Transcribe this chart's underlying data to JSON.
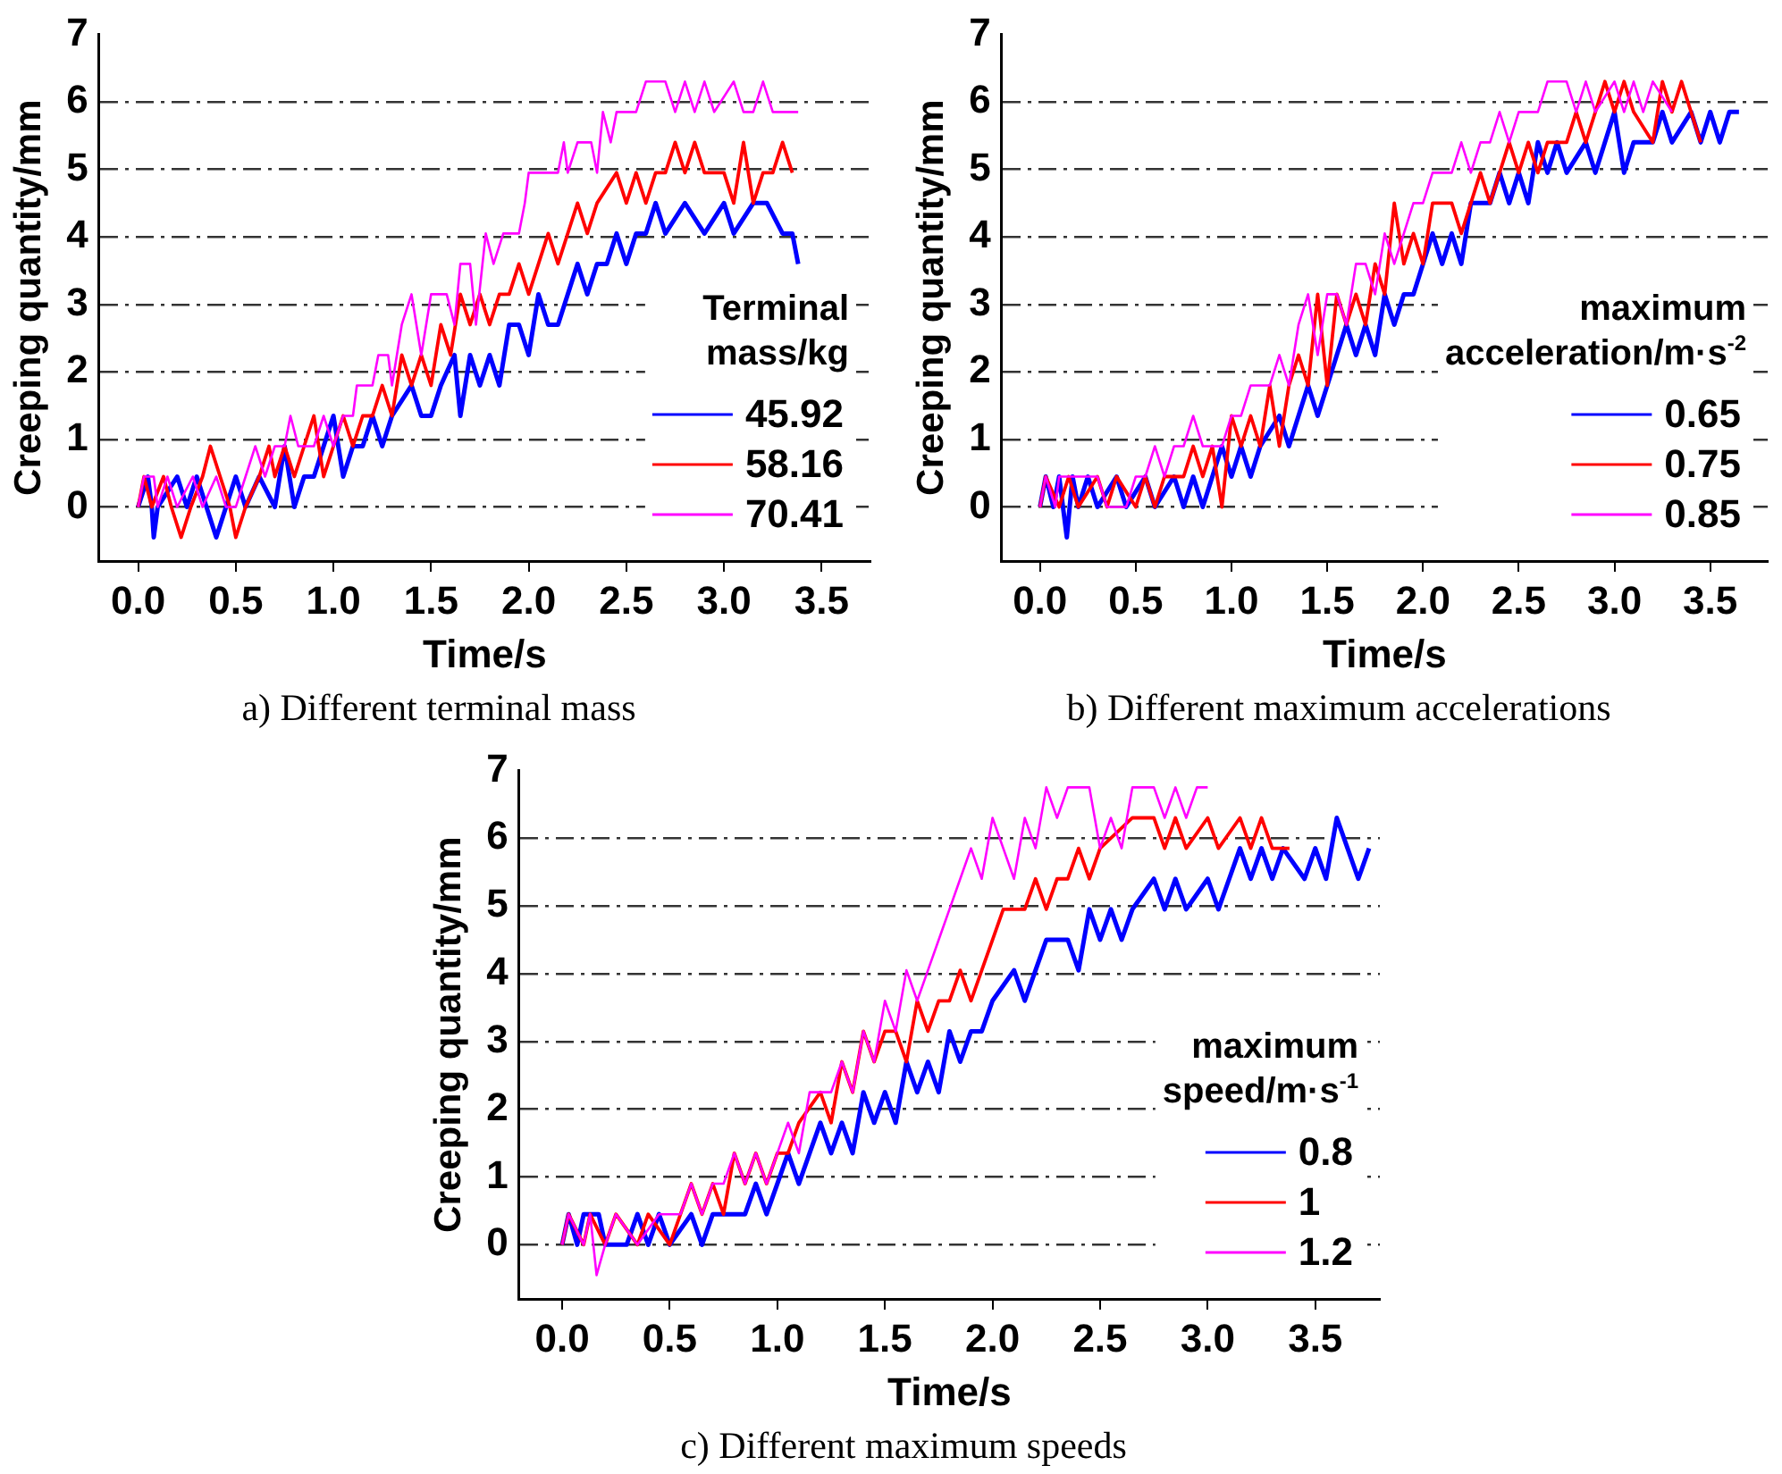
{
  "chart_data": [
    {
      "type": "line",
      "title": "a) Different terminal mass",
      "xlabel": "Time/s",
      "ylabel": "Creeping quantity/mm",
      "legend_title": "Terminal mass/kg",
      "legend": "bottom right",
      "grid": "y",
      "xlim": [
        -0.2,
        3.75
      ],
      "xticks": [
        {
          "value": 0,
          "label": "0.0"
        },
        {
          "value": 0.5,
          "label": "0.5"
        },
        {
          "value": 1,
          "label": "1.0"
        },
        {
          "value": 1.5,
          "label": "1.5"
        },
        {
          "value": 2,
          "label": "2.0"
        },
        {
          "value": 2.5,
          "label": "2.5"
        },
        {
          "value": 3,
          "label": "3.0"
        },
        {
          "value": 3.5,
          "label": "3.5"
        }
      ],
      "ylim": [
        -0.8,
        7
      ],
      "yticks": [
        0,
        1,
        2,
        3,
        4,
        5,
        6,
        7
      ],
      "series": [
        {
          "name": "45.92",
          "color": "#0000ff",
          "x": [
            0,
            0.05,
            0.07,
            0.08,
            0.1,
            0.2,
            0.25,
            0.3,
            0.35,
            0.4,
            0.45,
            0.5,
            0.55,
            0.62,
            0.7,
            0.75,
            0.8,
            0.85,
            0.9,
            0.95,
            1.0,
            1.05,
            1.1,
            1.15,
            1.2,
            1.25,
            1.3,
            1.4,
            1.45,
            1.5,
            1.55,
            1.62,
            1.65,
            1.7,
            1.75,
            1.8,
            1.85,
            1.9,
            1.95,
            2.0,
            2.05,
            2.1,
            2.15,
            2.2,
            2.25,
            2.3,
            2.35,
            2.4,
            2.45,
            2.5,
            2.55,
            2.6,
            2.65,
            2.7,
            2.8,
            2.9,
            3.0,
            3.05,
            3.15,
            3.22,
            3.3,
            3.35,
            3.38
          ],
          "values": [
            0,
            0.45,
            0,
            -0.45,
            0,
            0.45,
            0,
            0.45,
            0,
            -0.45,
            0,
            0.45,
            0,
            0.45,
            0,
            0.9,
            0,
            0.45,
            0.45,
            0.9,
            1.35,
            0.45,
            0.9,
            0.9,
            1.35,
            0.9,
            1.35,
            1.8,
            1.35,
            1.35,
            1.8,
            2.25,
            1.35,
            2.25,
            1.8,
            2.25,
            1.8,
            2.7,
            2.7,
            2.25,
            3.15,
            2.7,
            2.7,
            3.15,
            3.6,
            3.15,
            3.6,
            3.6,
            4.05,
            3.6,
            4.05,
            4.05,
            4.5,
            4.05,
            4.5,
            4.05,
            4.5,
            4.05,
            4.5,
            4.5,
            4.05,
            4.05,
            3.6
          ]
        },
        {
          "name": "58.16",
          "color": "#ff0000",
          "x": [
            0,
            0.03,
            0.07,
            0.13,
            0.17,
            0.22,
            0.27,
            0.33,
            0.37,
            0.42,
            0.47,
            0.5,
            0.55,
            0.62,
            0.67,
            0.7,
            0.75,
            0.8,
            0.85,
            0.9,
            0.95,
            1.0,
            1.05,
            1.1,
            1.15,
            1.2,
            1.25,
            1.3,
            1.35,
            1.4,
            1.45,
            1.5,
            1.55,
            1.6,
            1.65,
            1.7,
            1.75,
            1.8,
            1.85,
            1.9,
            1.95,
            2.0,
            2.05,
            2.1,
            2.15,
            2.2,
            2.25,
            2.3,
            2.35,
            2.45,
            2.5,
            2.55,
            2.6,
            2.65,
            2.7,
            2.75,
            2.8,
            2.85,
            2.9,
            3.0,
            3.05,
            3.1,
            3.15,
            3.2,
            3.25,
            3.3,
            3.35
          ],
          "values": [
            0,
            0.45,
            0,
            0.45,
            0,
            -0.45,
            0,
            0.45,
            0.9,
            0.45,
            0,
            -0.45,
            0,
            0.45,
            0.9,
            0.45,
            0.9,
            0.45,
            0.9,
            1.35,
            0.45,
            0.9,
            1.35,
            0.9,
            1.35,
            1.35,
            1.8,
            1.35,
            2.25,
            1.8,
            2.25,
            1.8,
            2.7,
            2.25,
            3.15,
            2.7,
            3.15,
            2.7,
            3.15,
            3.15,
            3.6,
            3.15,
            3.6,
            4.05,
            3.6,
            4.05,
            4.5,
            4.05,
            4.5,
            4.95,
            4.5,
            4.95,
            4.5,
            4.95,
            4.95,
            5.4,
            4.95,
            5.4,
            4.95,
            4.95,
            4.5,
            5.4,
            4.5,
            4.95,
            4.95,
            5.4,
            4.95
          ]
        },
        {
          "name": "70.41",
          "color": "#ff00ff",
          "x": [
            0,
            0.03,
            0.08,
            0.1,
            0.15,
            0.2,
            0.28,
            0.33,
            0.4,
            0.45,
            0.5,
            0.55,
            0.6,
            0.65,
            0.7,
            0.75,
            0.78,
            0.82,
            0.9,
            0.95,
            1.0,
            1.05,
            1.1,
            1.12,
            1.2,
            1.23,
            1.28,
            1.3,
            1.35,
            1.4,
            1.45,
            1.5,
            1.58,
            1.62,
            1.65,
            1.7,
            1.73,
            1.78,
            1.82,
            1.87,
            1.95,
            1.98,
            2.0,
            2.15,
            2.18,
            2.2,
            2.25,
            2.32,
            2.35,
            2.38,
            2.42,
            2.45,
            2.55,
            2.6,
            2.7,
            2.75,
            2.8,
            2.85,
            2.9,
            2.95,
            3.05,
            3.1,
            3.15,
            3.2,
            3.25,
            3.38
          ],
          "values": [
            0,
            0.45,
            0.45,
            0,
            0.45,
            0,
            0.45,
            0,
            0.45,
            0,
            0,
            0.45,
            0.9,
            0.45,
            0.9,
            0.9,
            1.35,
            0.9,
            0.9,
            1.35,
            0.9,
            1.35,
            1.35,
            1.8,
            1.8,
            2.25,
            2.25,
            1.8,
            2.7,
            3.15,
            2.25,
            3.15,
            3.15,
            2.7,
            3.6,
            3.6,
            2.7,
            4.05,
            3.6,
            4.05,
            4.05,
            4.5,
            4.95,
            4.95,
            5.4,
            4.95,
            5.4,
            5.4,
            4.95,
            5.85,
            5.4,
            5.85,
            5.85,
            6.3,
            6.3,
            5.85,
            6.3,
            5.85,
            6.3,
            5.85,
            6.3,
            5.85,
            5.85,
            6.3,
            5.85,
            5.85
          ]
        }
      ]
    },
    {
      "type": "line",
      "title": "b) Different maximum accelerations",
      "xlabel": "Time/s",
      "ylabel": "Creeping quantity/mm",
      "legend_title": "maximum acceleration/m·s$^{-2}$",
      "legend": "bottom right",
      "grid": "y",
      "xlim": [
        -0.2,
        3.8
      ],
      "xticks": [
        {
          "value": 0,
          "label": "0.0"
        },
        {
          "value": 0.5,
          "label": "0.5"
        },
        {
          "value": 1,
          "label": "1.0"
        },
        {
          "value": 1.5,
          "label": "1.5"
        },
        {
          "value": 2,
          "label": "2.0"
        },
        {
          "value": 2.5,
          "label": "2.5"
        },
        {
          "value": 3,
          "label": "3.0"
        },
        {
          "value": 3.5,
          "label": "3.5"
        }
      ],
      "ylim": [
        -0.8,
        7
      ],
      "yticks": [
        0,
        1,
        2,
        3,
        4,
        5,
        6,
        7
      ],
      "series": [
        {
          "name": "0.65",
          "color": "#0000ff",
          "x": [
            0,
            0.03,
            0.07,
            0.1,
            0.14,
            0.17,
            0.2,
            0.25,
            0.3,
            0.4,
            0.45,
            0.55,
            0.6,
            0.7,
            0.75,
            0.8,
            0.85,
            0.9,
            0.95,
            1.0,
            1.05,
            1.1,
            1.15,
            1.25,
            1.3,
            1.35,
            1.4,
            1.45,
            1.5,
            1.55,
            1.6,
            1.65,
            1.7,
            1.75,
            1.8,
            1.85,
            1.9,
            1.95,
            2.0,
            2.05,
            2.1,
            2.15,
            2.2,
            2.25,
            2.35,
            2.4,
            2.45,
            2.5,
            2.55,
            2.6,
            2.65,
            2.7,
            2.75,
            2.85,
            2.9,
            2.95,
            3.0,
            3.05,
            3.1,
            3.2,
            3.25,
            3.3,
            3.4,
            3.45,
            3.5,
            3.55,
            3.6,
            3.65
          ],
          "values": [
            0,
            0.45,
            0,
            0.45,
            -0.45,
            0.45,
            0,
            0.45,
            0,
            0.45,
            0,
            0.45,
            0,
            0.45,
            0,
            0.45,
            0,
            0.45,
            0.9,
            0.45,
            0.9,
            0.45,
            0.9,
            1.35,
            0.9,
            1.35,
            1.8,
            1.35,
            1.8,
            2.25,
            2.7,
            2.25,
            2.7,
            2.25,
            3.15,
            2.7,
            3.15,
            3.15,
            3.6,
            4.05,
            3.6,
            4.05,
            3.6,
            4.5,
            4.5,
            4.95,
            4.5,
            4.95,
            4.5,
            5.4,
            4.95,
            5.4,
            4.95,
            5.4,
            4.95,
            5.4,
            5.85,
            4.95,
            5.4,
            5.4,
            5.85,
            5.4,
            5.85,
            5.4,
            5.85,
            5.4,
            5.85,
            5.85
          ]
        },
        {
          "name": "0.75",
          "color": "#ff0000",
          "x": [
            0,
            0.03,
            0.1,
            0.15,
            0.2,
            0.3,
            0.35,
            0.4,
            0.5,
            0.55,
            0.6,
            0.65,
            0.75,
            0.8,
            0.85,
            0.9,
            0.95,
            1.0,
            1.05,
            1.1,
            1.15,
            1.2,
            1.25,
            1.3,
            1.35,
            1.4,
            1.45,
            1.5,
            1.55,
            1.6,
            1.65,
            1.7,
            1.75,
            1.8,
            1.85,
            1.9,
            1.95,
            2.0,
            2.05,
            2.15,
            2.2,
            2.25,
            2.3,
            2.35,
            2.45,
            2.5,
            2.55,
            2.6,
            2.65,
            2.75,
            2.8,
            2.85,
            2.9,
            2.95,
            3.0,
            3.05,
            3.1,
            3.2,
            3.25,
            3.3,
            3.35,
            3.4,
            3.45
          ],
          "values": [
            0,
            0.45,
            0,
            0.45,
            0,
            0.45,
            0,
            0.45,
            0,
            0.45,
            0,
            0.45,
            0.45,
            0.9,
            0.45,
            0.9,
            0,
            1.35,
            0.9,
            1.35,
            0.9,
            1.8,
            0.9,
            1.8,
            2.25,
            1.8,
            3.15,
            1.8,
            3.15,
            2.7,
            3.15,
            2.7,
            3.6,
            3.15,
            4.5,
            3.6,
            4.05,
            3.6,
            4.5,
            4.5,
            4.05,
            4.5,
            4.95,
            4.5,
            5.4,
            4.95,
            5.4,
            4.95,
            5.4,
            5.4,
            5.85,
            5.4,
            5.85,
            6.3,
            5.85,
            6.3,
            5.85,
            5.4,
            6.3,
            5.85,
            6.3,
            5.85,
            5.4
          ]
        },
        {
          "name": "0.85",
          "color": "#ff00ff",
          "x": [
            0,
            0.03,
            0.08,
            0.1,
            0.3,
            0.35,
            0.45,
            0.5,
            0.55,
            0.6,
            0.65,
            0.7,
            0.75,
            0.8,
            0.85,
            0.95,
            1.0,
            1.05,
            1.1,
            1.2,
            1.25,
            1.3,
            1.35,
            1.4,
            1.45,
            1.5,
            1.55,
            1.6,
            1.65,
            1.7,
            1.75,
            1.8,
            1.85,
            1.9,
            1.95,
            2.0,
            2.05,
            2.15,
            2.2,
            2.25,
            2.3,
            2.35,
            2.4,
            2.45,
            2.5,
            2.6,
            2.65,
            2.75,
            2.8,
            2.85,
            2.9,
            3.0,
            3.05,
            3.1,
            3.15,
            3.2,
            3.3
          ],
          "values": [
            0,
            0.45,
            0,
            0.45,
            0.45,
            0,
            0,
            0.45,
            0.45,
            0.9,
            0.45,
            0.9,
            0.9,
            1.35,
            0.9,
            0.9,
            1.35,
            1.35,
            1.8,
            1.8,
            2.25,
            1.8,
            2.7,
            3.15,
            2.25,
            3.15,
            3.15,
            2.7,
            3.6,
            3.6,
            3.15,
            4.05,
            3.6,
            4.05,
            4.5,
            4.5,
            4.95,
            4.95,
            5.4,
            4.95,
            5.4,
            5.4,
            5.85,
            5.4,
            5.85,
            5.85,
            6.3,
            6.3,
            5.85,
            6.3,
            5.85,
            6.3,
            5.85,
            6.3,
            5.85,
            6.3,
            5.85
          ]
        }
      ]
    },
    {
      "type": "line",
      "title": "c) Different maximum speeds",
      "xlabel": "Time/s",
      "ylabel": "Creeping quantity/mm",
      "legend_title": "maximum speed/m·s$^{-1}$",
      "legend": "bottom right",
      "grid": "y",
      "xlim": [
        -0.2,
        3.8
      ],
      "xticks": [
        {
          "value": 0,
          "label": "0.0"
        },
        {
          "value": 0.5,
          "label": "0.5"
        },
        {
          "value": 1,
          "label": "1.0"
        },
        {
          "value": 1.5,
          "label": "1.5"
        },
        {
          "value": 2,
          "label": "2.0"
        },
        {
          "value": 2.5,
          "label": "2.5"
        },
        {
          "value": 3,
          "label": "3.0"
        },
        {
          "value": 3.5,
          "label": "3.5"
        }
      ],
      "ylim": [
        -0.8,
        7
      ],
      "yticks": [
        0,
        1,
        2,
        3,
        4,
        5,
        6,
        7
      ],
      "series": [
        {
          "name": "0.8",
          "color": "#0000ff",
          "x": [
            0,
            0.03,
            0.07,
            0.1,
            0.17,
            0.2,
            0.3,
            0.35,
            0.4,
            0.45,
            0.5,
            0.6,
            0.65,
            0.7,
            0.85,
            0.9,
            0.95,
            1.0,
            1.05,
            1.1,
            1.15,
            1.2,
            1.25,
            1.3,
            1.35,
            1.4,
            1.45,
            1.5,
            1.55,
            1.6,
            1.65,
            1.7,
            1.75,
            1.8,
            1.85,
            1.9,
            1.95,
            2.0,
            2.1,
            2.15,
            2.2,
            2.25,
            2.35,
            2.4,
            2.45,
            2.5,
            2.55,
            2.6,
            2.65,
            2.75,
            2.8,
            2.85,
            2.9,
            3.0,
            3.05,
            3.1,
            3.15,
            3.2,
            3.25,
            3.3,
            3.35,
            3.45,
            3.5,
            3.55,
            3.6,
            3.65,
            3.7,
            3.75
          ],
          "values": [
            0,
            0.45,
            0,
            0.45,
            0.45,
            0,
            0,
            0.45,
            0,
            0.45,
            0,
            0.45,
            0,
            0.45,
            0.45,
            0.9,
            0.45,
            0.9,
            1.35,
            0.9,
            1.35,
            1.8,
            1.35,
            1.8,
            1.35,
            2.25,
            1.8,
            2.25,
            1.8,
            2.7,
            2.25,
            2.7,
            2.25,
            3.15,
            2.7,
            3.15,
            3.15,
            3.6,
            4.05,
            3.6,
            4.05,
            4.5,
            4.5,
            4.05,
            4.95,
            4.5,
            4.95,
            4.5,
            4.95,
            5.4,
            4.95,
            5.4,
            4.95,
            5.4,
            4.95,
            5.4,
            5.85,
            5.4,
            5.85,
            5.4,
            5.85,
            5.4,
            5.85,
            5.4,
            6.3,
            5.85,
            5.4,
            5.85
          ]
        },
        {
          "name": "1",
          "color": "#ff0000",
          "x": [
            0,
            0.03,
            0.1,
            0.13,
            0.2,
            0.25,
            0.35,
            0.4,
            0.5,
            0.55,
            0.6,
            0.65,
            0.7,
            0.75,
            0.8,
            0.85,
            0.9,
            0.95,
            1.0,
            1.05,
            1.1,
            1.2,
            1.25,
            1.3,
            1.35,
            1.4,
            1.45,
            1.5,
            1.55,
            1.6,
            1.65,
            1.7,
            1.75,
            1.8,
            1.85,
            1.9,
            1.95,
            2.0,
            2.05,
            2.15,
            2.2,
            2.25,
            2.3,
            2.35,
            2.4,
            2.45,
            2.5,
            2.65,
            2.75,
            2.8,
            2.85,
            2.9,
            3.0,
            3.05,
            3.15,
            3.2,
            3.25,
            3.3,
            3.38
          ],
          "values": [
            0,
            0.45,
            0,
            0.45,
            0,
            0.45,
            0,
            0.45,
            0,
            0.45,
            0.9,
            0.45,
            0.9,
            0.45,
            1.35,
            0.9,
            1.35,
            0.9,
            1.35,
            1.35,
            1.8,
            2.25,
            1.8,
            2.7,
            2.25,
            3.15,
            2.7,
            3.15,
            3.15,
            2.7,
            3.6,
            3.15,
            3.6,
            3.6,
            4.05,
            3.6,
            4.05,
            4.5,
            4.95,
            4.95,
            5.4,
            4.95,
            5.4,
            5.4,
            5.85,
            5.4,
            5.85,
            6.3,
            6.3,
            5.85,
            6.3,
            5.85,
            6.3,
            5.85,
            6.3,
            5.85,
            6.3,
            5.85,
            5.85
          ]
        },
        {
          "name": "1.2",
          "color": "#ff00ff",
          "x": [
            0,
            0.03,
            0.1,
            0.13,
            0.16,
            0.2,
            0.25,
            0.35,
            0.45,
            0.55,
            0.6,
            0.65,
            0.7,
            0.75,
            0.8,
            0.85,
            0.9,
            0.95,
            1.0,
            1.05,
            1.1,
            1.15,
            1.25,
            1.3,
            1.35,
            1.4,
            1.45,
            1.5,
            1.55,
            1.6,
            1.65,
            1.7,
            1.75,
            1.8,
            1.85,
            1.9,
            1.95,
            2.0,
            2.05,
            2.1,
            2.15,
            2.2,
            2.25,
            2.3,
            2.35,
            2.45,
            2.5,
            2.55,
            2.6,
            2.65,
            2.75,
            2.8,
            2.85,
            2.9,
            2.95,
            3.0
          ],
          "values": [
            0,
            0.45,
            0,
            0.45,
            -0.45,
            0,
            0.45,
            0,
            0.45,
            0.45,
            0.9,
            0.45,
            0.9,
            0.9,
            1.35,
            0.9,
            1.35,
            0.9,
            1.35,
            1.8,
            1.35,
            2.25,
            2.25,
            2.7,
            2.25,
            3.15,
            2.7,
            3.6,
            3.15,
            4.05,
            3.6,
            4.05,
            4.5,
            4.95,
            5.4,
            5.85,
            5.4,
            6.3,
            5.85,
            5.4,
            6.3,
            5.85,
            6.75,
            6.3,
            6.75,
            6.75,
            5.85,
            6.3,
            5.85,
            6.75,
            6.75,
            6.3,
            6.75,
            6.3,
            6.75,
            6.75
          ]
        }
      ]
    }
  ]
}
